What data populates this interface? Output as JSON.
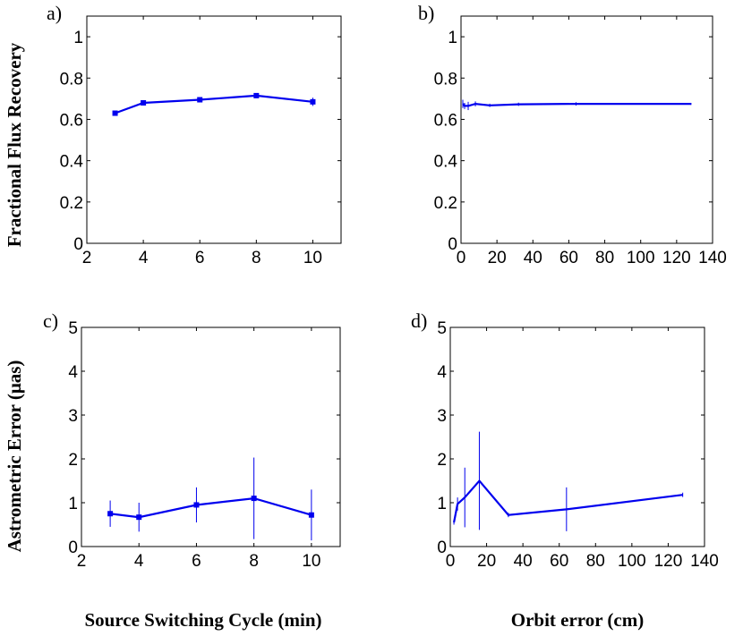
{
  "figure": {
    "shared_labels": {
      "ylabel_top": "Fractional Flux Recovery",
      "ylabel_bottom": "Astrometric Error (μas)",
      "xlabel_left": "Source Switching Cycle (min)",
      "xlabel_right": "Orbit error (cm)"
    },
    "series_color": "#0000ee"
  },
  "chart_data": [
    {
      "panel": "a)",
      "type": "line",
      "xlabel": "",
      "ylabel": "Fractional Flux Recovery",
      "xlim": [
        2,
        11
      ],
      "ylim": [
        0,
        1.1
      ],
      "xticks": [
        2,
        4,
        6,
        8,
        10
      ],
      "yticks": [
        0,
        0.2,
        0.4,
        0.6,
        0.8,
        1
      ],
      "grid": false,
      "marker": "square",
      "series": [
        {
          "x": [
            3,
            4,
            6,
            8,
            10
          ],
          "y": [
            0.63,
            0.68,
            0.695,
            0.715,
            0.685
          ],
          "yerr": [
            0.008,
            0.01,
            0.012,
            0.01,
            0.02
          ]
        }
      ]
    },
    {
      "panel": "b)",
      "type": "line",
      "xlabel": "",
      "ylabel": "",
      "xlim": [
        0,
        140
      ],
      "ylim": [
        0,
        1.1
      ],
      "xticks": [
        0,
        20,
        40,
        60,
        80,
        100,
        120,
        140
      ],
      "yticks": [
        0,
        0.2,
        0.4,
        0.6,
        0.8,
        1
      ],
      "grid": false,
      "marker": "none",
      "series": [
        {
          "x": [
            1,
            2,
            4,
            8,
            16,
            32,
            64,
            128
          ],
          "y": [
            0.675,
            0.665,
            0.665,
            0.675,
            0.668,
            0.673,
            0.675,
            0.675
          ],
          "yerr": [
            0.02,
            0.015,
            0.02,
            0.012,
            0.008,
            0.008,
            0.008,
            0.005
          ]
        }
      ]
    },
    {
      "panel": "c)",
      "type": "line",
      "xlabel": "Source Switching Cycle (min)",
      "ylabel": "Astrometric Error (μas)",
      "xlim": [
        2,
        11
      ],
      "ylim": [
        0,
        5
      ],
      "xticks": [
        2,
        4,
        6,
        8,
        10
      ],
      "yticks": [
        0,
        1,
        2,
        3,
        4,
        5
      ],
      "grid": false,
      "marker": "square",
      "series": [
        {
          "x": [
            3,
            4,
            6,
            8,
            10
          ],
          "y": [
            0.75,
            0.67,
            0.95,
            1.1,
            0.72
          ],
          "yerr": [
            0.3,
            0.33,
            0.4,
            0.93,
            0.58
          ]
        }
      ]
    },
    {
      "panel": "d)",
      "type": "line",
      "xlabel": "Orbit error (cm)",
      "ylabel": "",
      "xlim": [
        0,
        140
      ],
      "ylim": [
        0,
        5
      ],
      "xticks": [
        0,
        20,
        40,
        60,
        80,
        100,
        120,
        140
      ],
      "yticks": [
        0,
        1,
        2,
        3,
        4,
        5
      ],
      "grid": false,
      "marker": "none",
      "series": [
        {
          "x": [
            2,
            4,
            8,
            16,
            32,
            64,
            128
          ],
          "y": [
            0.55,
            0.97,
            1.12,
            1.5,
            0.72,
            0.85,
            1.18
          ],
          "yerr": [
            0.05,
            0.15,
            0.68,
            1.12,
            0.05,
            0.5,
            0.05
          ]
        }
      ]
    }
  ]
}
